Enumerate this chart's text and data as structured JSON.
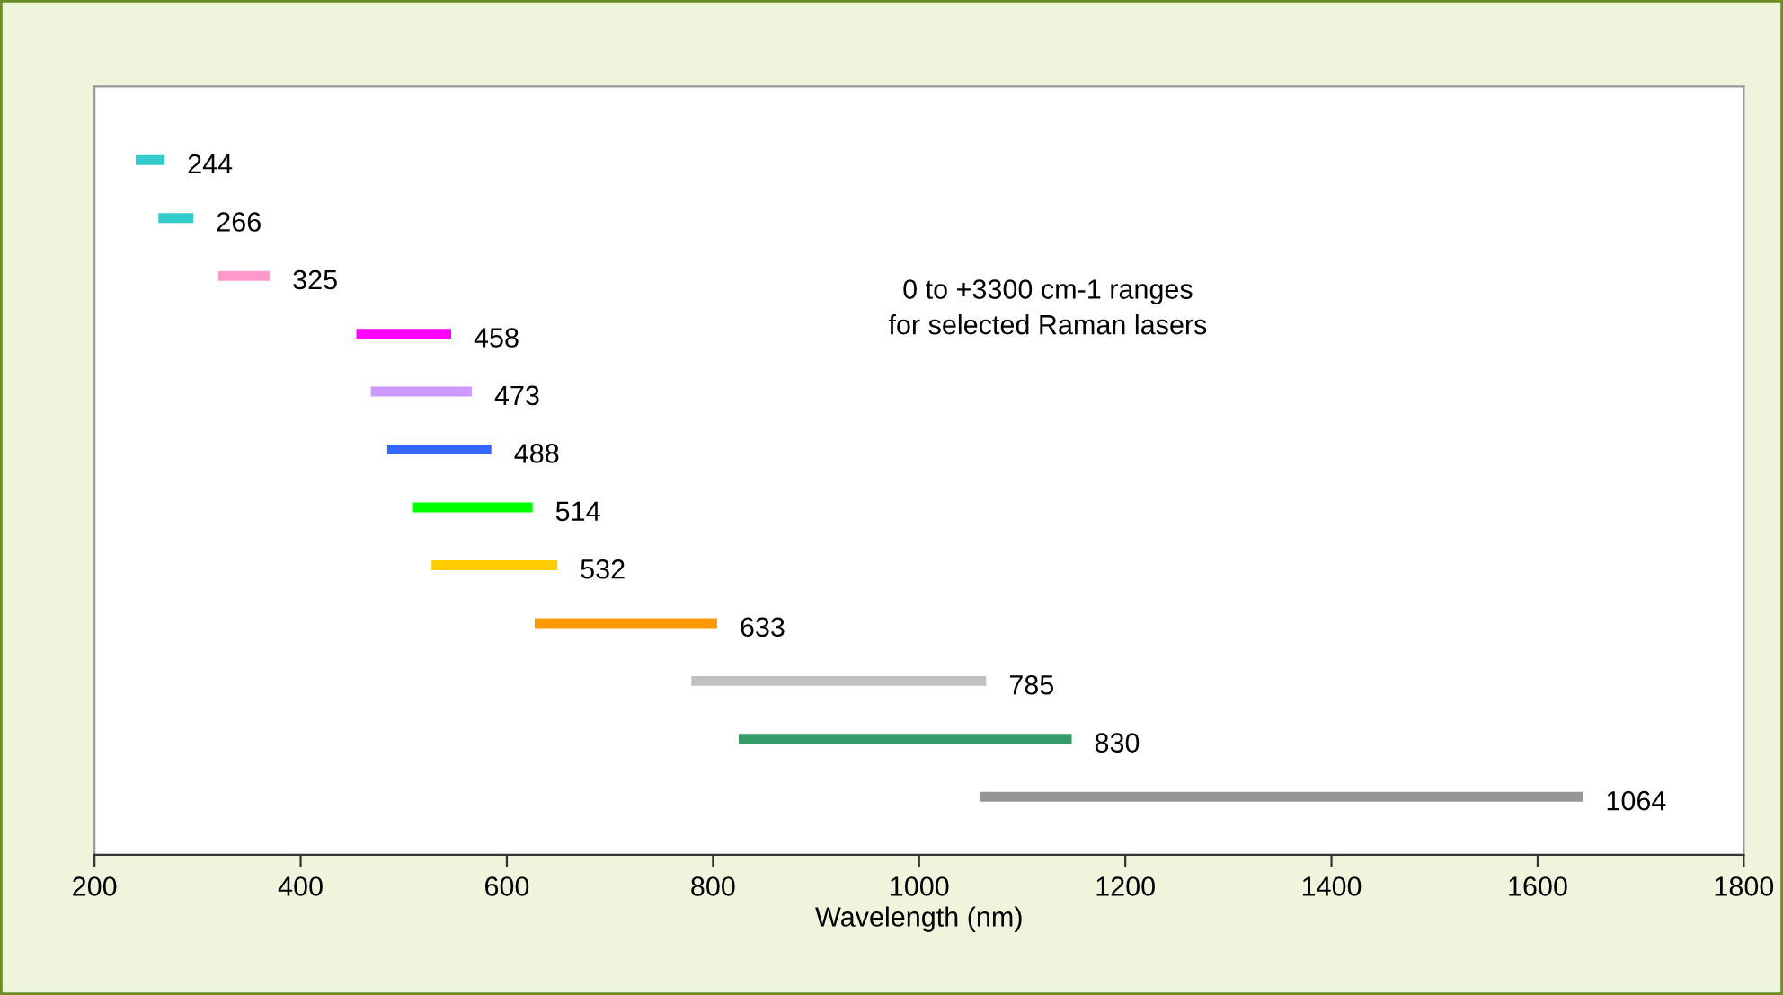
{
  "chart_data": {
    "type": "bar",
    "orientation": "horizontal",
    "xlabel": "Wavelength (nm)",
    "categories": [
      "244",
      "266",
      "325",
      "458",
      "473",
      "488",
      "514",
      "532",
      "633",
      "785",
      "830",
      "1064"
    ],
    "base": [
      240,
      262,
      320,
      454,
      468,
      484,
      509,
      527,
      627,
      779,
      825,
      1059
    ],
    "values": [
      28,
      34,
      50,
      92,
      98,
      101,
      116,
      122,
      177,
      286,
      323,
      585
    ],
    "colors": [
      "#33cccc",
      "#33cccc",
      "#ff99cc",
      "#ff00ff",
      "#cc99ff",
      "#3366ff",
      "#00ff00",
      "#ffcc00",
      "#ff9900",
      "#c0c0c0",
      "#339966",
      "#969696"
    ],
    "xlim": [
      200,
      1800
    ],
    "xticks": [
      200,
      400,
      600,
      800,
      1000,
      1200,
      1400,
      1600,
      1800
    ],
    "annotations": [
      "0 to +3300 cm-1 ranges\nfor selected Raman lasers"
    ],
    "grid": false,
    "legend": false
  }
}
